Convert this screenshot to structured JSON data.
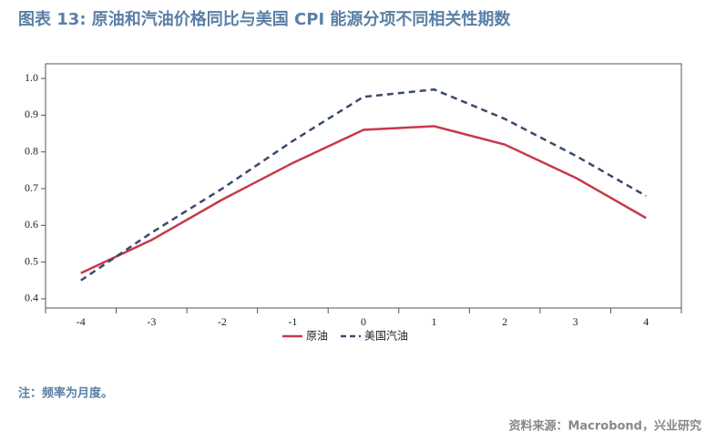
{
  "chart_data": {
    "type": "line",
    "title": "图表 13: 原油和汽油价格同比与美国 CPI 能源分项不同相关性期数",
    "note": "注：频率为月度。",
    "source": "资料来源：Macrobond，兴业研究",
    "categories": [
      "-4",
      "-3",
      "-2",
      "-1",
      "0",
      "1",
      "2",
      "3",
      "4"
    ],
    "series": [
      {
        "name": "原油",
        "color": "#c8394a",
        "dash": false,
        "values": [
          0.47,
          0.56,
          0.67,
          0.77,
          0.86,
          0.87,
          0.82,
          0.73,
          0.62
        ]
      },
      {
        "name": "美国汽油",
        "color": "#3b4a6b",
        "dash": true,
        "values": [
          0.45,
          0.58,
          0.7,
          0.83,
          0.95,
          0.97,
          0.89,
          0.79,
          0.68
        ]
      }
    ],
    "ylim": [
      0.375,
      1.04
    ],
    "yticks": [
      0.4,
      0.5,
      0.6,
      0.7,
      0.8,
      0.9,
      {
        "value": 1,
        "label": "1.0"
      }
    ],
    "legend": "bottom"
  }
}
